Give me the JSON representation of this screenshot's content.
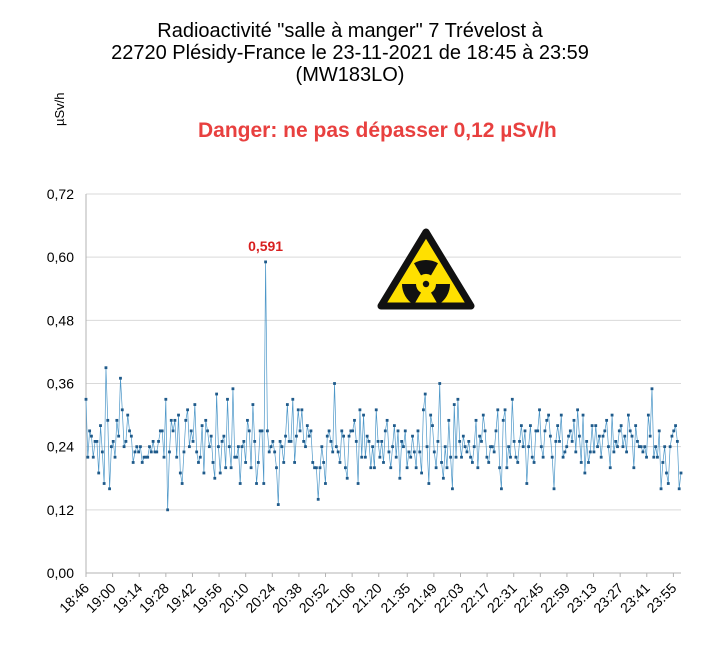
{
  "title_line1": "Radioactivité \"salle à manger\"  7 Trévelost à",
  "title_line2": "22720 Plésidy-France le 23-11-2021 de 18:45 à 23:59",
  "title_line3": "(MW183LO)",
  "ylabel": "µSv/h",
  "danger_text": "Danger: ne pas dépasser 0,12 µSv/h",
  "icon": "radiation-warning-icon",
  "colors": {
    "danger": "#e8403f",
    "series": "#4d97c8",
    "marker": "#1f5a8a",
    "peak_label": "#d81f1f",
    "grid": "#d9d9d9"
  },
  "chart_data": {
    "type": "line",
    "ylim": [
      0,
      0.72
    ],
    "yticks": [
      "0,00",
      "0,12",
      "0,24",
      "0,36",
      "0,48",
      "0,60",
      "0,72"
    ],
    "x_range": [
      "18:46",
      "23:59"
    ],
    "xticks": [
      "18:46",
      "19:00",
      "19:14",
      "19:28",
      "19:42",
      "19:56",
      "20:10",
      "20:24",
      "20:38",
      "20:52",
      "21:06",
      "21:20",
      "21:35",
      "21:49",
      "22:03",
      "22:17",
      "22:31",
      "22:45",
      "22:59",
      "23:13",
      "23:27",
      "23:41",
      "23:55"
    ],
    "grid": "horizontal",
    "annotation": {
      "label": "0,591",
      "x": "20:27",
      "y": 0.591
    },
    "values": [
      0.33,
      0.22,
      0.27,
      0.26,
      0.22,
      0.25,
      0.25,
      0.19,
      0.28,
      0.23,
      0.17,
      0.39,
      0.29,
      0.16,
      0.24,
      0.25,
      0.22,
      0.29,
      0.26,
      0.37,
      0.31,
      0.24,
      0.25,
      0.3,
      0.27,
      0.26,
      0.21,
      0.23,
      0.24,
      0.23,
      0.24,
      0.21,
      0.22,
      0.22,
      0.22,
      0.24,
      0.23,
      0.25,
      0.23,
      0.23,
      0.25,
      0.27,
      0.27,
      0.22,
      0.33,
      0.12,
      0.23,
      0.29,
      0.27,
      0.29,
      0.22,
      0.3,
      0.19,
      0.17,
      0.23,
      0.29,
      0.31,
      0.24,
      0.27,
      0.25,
      0.32,
      0.23,
      0.21,
      0.22,
      0.28,
      0.19,
      0.29,
      0.27,
      0.24,
      0.26,
      0.21,
      0.18,
      0.34,
      0.24,
      0.19,
      0.25,
      0.26,
      0.2,
      0.33,
      0.24,
      0.2,
      0.35,
      0.22,
      0.22,
      0.24,
      0.17,
      0.24,
      0.25,
      0.21,
      0.29,
      0.27,
      0.2,
      0.32,
      0.25,
      0.17,
      0.21,
      0.27,
      0.27,
      0.17,
      0.591,
      0.27,
      0.23,
      0.24,
      0.25,
      0.23,
      0.2,
      0.13,
      0.25,
      0.24,
      0.21,
      0.26,
      0.32,
      0.25,
      0.25,
      0.33,
      0.21,
      0.26,
      0.31,
      0.27,
      0.31,
      0.25,
      0.24,
      0.28,
      0.26,
      0.27,
      0.21,
      0.2,
      0.2,
      0.14,
      0.2,
      0.24,
      0.21,
      0.17,
      0.26,
      0.27,
      0.25,
      0.23,
      0.36,
      0.24,
      0.23,
      0.21,
      0.27,
      0.26,
      0.2,
      0.18,
      0.26,
      0.27,
      0.27,
      0.29,
      0.25,
      0.17,
      0.31,
      0.22,
      0.3,
      0.22,
      0.26,
      0.25,
      0.2,
      0.24,
      0.2,
      0.31,
      0.25,
      0.22,
      0.25,
      0.21,
      0.27,
      0.29,
      0.23,
      0.2,
      0.24,
      0.28,
      0.22,
      0.27,
      0.18,
      0.25,
      0.24,
      0.27,
      0.2,
      0.23,
      0.22,
      0.26,
      0.23,
      0.2,
      0.27,
      0.23,
      0.19,
      0.31,
      0.34,
      0.24,
      0.17,
      0.3,
      0.28,
      0.23,
      0.2,
      0.25,
      0.36,
      0.21,
      0.18,
      0.24,
      0.2,
      0.29,
      0.22,
      0.16,
      0.32,
      0.22,
      0.33,
      0.25,
      0.22,
      0.26,
      0.24,
      0.23,
      0.25,
      0.22,
      0.21,
      0.24,
      0.29,
      0.2,
      0.26,
      0.25,
      0.3,
      0.27,
      0.22,
      0.21,
      0.24,
      0.24,
      0.23,
      0.27,
      0.31,
      0.2,
      0.16,
      0.29,
      0.31,
      0.2,
      0.24,
      0.22,
      0.33,
      0.25,
      0.22,
      0.21,
      0.25,
      0.28,
      0.24,
      0.27,
      0.17,
      0.24,
      0.28,
      0.22,
      0.21,
      0.27,
      0.27,
      0.31,
      0.24,
      0.22,
      0.27,
      0.29,
      0.3,
      0.26,
      0.22,
      0.16,
      0.25,
      0.28,
      0.25,
      0.3,
      0.22,
      0.23,
      0.24,
      0.26,
      0.27,
      0.25,
      0.29,
      0.23,
      0.31,
      0.26,
      0.21,
      0.3,
      0.19,
      0.25,
      0.21,
      0.23,
      0.28,
      0.23,
      0.28,
      0.24,
      0.26,
      0.22,
      0.26,
      0.27,
      0.29,
      0.24,
      0.2,
      0.3,
      0.23,
      0.25,
      0.24,
      0.27,
      0.28,
      0.24,
      0.26,
      0.23,
      0.3,
      0.27,
      0.26,
      0.2,
      0.28,
      0.25,
      0.24,
      0.24,
      0.23,
      0.24,
      0.22,
      0.3,
      0.26,
      0.35,
      0.22,
      0.24,
      0.22,
      0.27,
      0.16,
      0.21,
      0.24,
      0.19,
      0.17,
      0.24,
      0.26,
      0.27,
      0.28,
      0.25,
      0.16,
      0.19
    ]
  }
}
